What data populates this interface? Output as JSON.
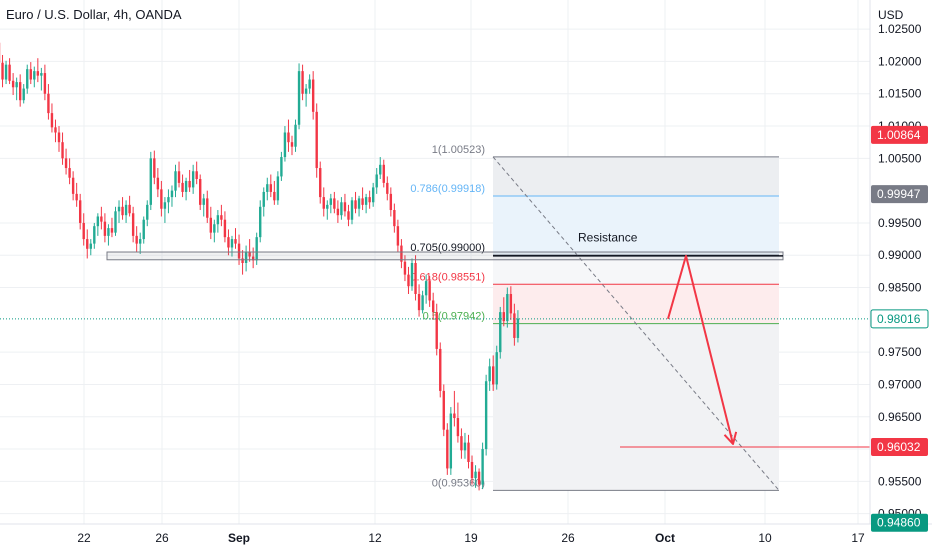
{
  "header": {
    "title": "Euro / U.S. Dollar, 4h, OANDA"
  },
  "colors": {
    "up": "#22ab94",
    "down": "#f23645",
    "grid": "#eef0f3",
    "axis_text": "#131722",
    "fib_1": "#787b86",
    "fib_786": "#64b5f6",
    "fib_705": "#131722",
    "fib_618": "#f23645",
    "fib_05": "#4caf50",
    "fib_0": "#787b86",
    "current_price": "#089981",
    "label_red": "#f23645",
    "label_gray": "#787b86",
    "label_teal": "#089981",
    "projection": "#f23645"
  },
  "chart_data": {
    "type": "candlestick",
    "instrument": "Euro / U.S. Dollar",
    "timeframe": "4h",
    "source": "OANDA",
    "y_axis": {
      "label": "USD",
      "ylim": [
        0.9484,
        1.0292
      ],
      "ticks": [
        "1.02500",
        "1.02000",
        "1.01500",
        "1.01000",
        "1.00500",
        "0.99500",
        "0.99000",
        "0.98500",
        "0.97500",
        "0.97000",
        "0.96500",
        "0.96000",
        "0.95500",
        "0.95000"
      ]
    },
    "x_axis": {
      "ticks": [
        "22",
        "26",
        "Sep",
        "12",
        "19",
        "26",
        "Oct",
        "10",
        "17"
      ]
    },
    "grid": true,
    "price_labels": [
      {
        "text": "1.00864",
        "value": 1.00864,
        "style": "red"
      },
      {
        "text": "0.99947",
        "value": 0.99947,
        "style": "gray"
      },
      {
        "text": "0.98016",
        "value": 0.98016,
        "style": "teal-outline"
      },
      {
        "text": "0.96032",
        "value": 0.96032,
        "style": "red"
      },
      {
        "text": "0.94860",
        "value": 0.9486,
        "style": "teal"
      }
    ],
    "current_price": 0.98016,
    "fibonacci": [
      {
        "label": "1(1.00523)",
        "value": 1.00523
      },
      {
        "label": "0.786(0.99918)",
        "value": 0.99918
      },
      {
        "label": "0.705(0.99000)",
        "value": 0.99
      },
      {
        "label": "0.618(0.98551)",
        "value": 0.98551
      },
      {
        "label": "0.5(0.97942)",
        "value": 0.97942
      },
      {
        "label": "0(0.95360)",
        "value": 0.9536
      }
    ],
    "resistance": {
      "label": "Resistance",
      "low": 0.9895,
      "high": 0.9908
    },
    "support_zone": {
      "low": 0.9893,
      "high": 0.9905
    },
    "target_level": 0.96032,
    "projection_path": [
      0.98016,
      0.9899,
      0.96032
    ],
    "candles": [
      [
        1.0229,
        1.0239,
        1.0185,
        1.0198
      ],
      [
        1.0198,
        1.021,
        1.016,
        1.0172
      ],
      [
        1.0172,
        1.0201,
        1.0165,
        1.0195
      ],
      [
        1.0195,
        1.0205,
        1.0165,
        1.017
      ],
      [
        1.017,
        1.0182,
        1.0148,
        1.016
      ],
      [
        1.016,
        1.0175,
        1.014,
        1.0168
      ],
      [
        1.0168,
        1.018,
        1.013,
        1.014
      ],
      [
        1.014,
        1.0165,
        1.0135,
        1.0158
      ],
      [
        1.0158,
        1.0195,
        1.015,
        1.0188
      ],
      [
        1.0188,
        1.0199,
        1.0165,
        1.0172
      ],
      [
        1.0172,
        1.0192,
        1.016,
        1.0185
      ],
      [
        1.0185,
        1.0205,
        1.0168,
        1.0178
      ],
      [
        1.0178,
        1.019,
        1.0155,
        1.0182
      ],
      [
        1.0182,
        1.0195,
        1.014,
        1.015
      ],
      [
        1.015,
        1.0165,
        1.011,
        1.012
      ],
      [
        1.012,
        1.0135,
        1.009,
        1.0098
      ],
      [
        1.0098,
        1.011,
        1.0075,
        1.009
      ],
      [
        1.009,
        1.01,
        1.006,
        1.0075
      ],
      [
        1.0075,
        1.009,
        1.004,
        1.005
      ],
      [
        1.005,
        1.0065,
        1.0025,
        1.0035
      ],
      [
        1.0035,
        1.005,
        1.001,
        1.002
      ],
      [
        1.002,
        1.003,
        0.9985,
        0.9995
      ],
      [
        0.9995,
        1.0012,
        0.9975,
        0.9985
      ],
      [
        0.9985,
        0.9995,
        0.994,
        0.995
      ],
      [
        0.995,
        0.9965,
        0.9915,
        0.9925
      ],
      [
        0.9925,
        0.994,
        0.9895,
        0.991
      ],
      [
        0.991,
        0.9925,
        0.99,
        0.9918
      ],
      [
        0.9918,
        0.995,
        0.991,
        0.9945
      ],
      [
        0.9945,
        0.9965,
        0.993,
        0.996
      ],
      [
        0.996,
        0.9975,
        0.994,
        0.9952
      ],
      [
        0.9952,
        0.9965,
        0.992,
        0.993
      ],
      [
        0.993,
        0.9948,
        0.9915,
        0.9942
      ],
      [
        0.9942,
        0.9958,
        0.9928,
        0.9935
      ],
      [
        0.9935,
        0.9975,
        0.993,
        0.9968
      ],
      [
        0.9968,
        0.9985,
        0.995,
        0.9975
      ],
      [
        0.9975,
        0.999,
        0.9955,
        0.9962
      ],
      [
        0.9962,
        0.9985,
        0.995,
        0.9978
      ],
      [
        0.9978,
        0.9992,
        0.996,
        0.9965
      ],
      [
        0.9965,
        0.9975,
        0.992,
        0.993
      ],
      [
        0.993,
        0.9945,
        0.9905,
        0.9918
      ],
      [
        0.9918,
        0.9935,
        0.9902,
        0.9925
      ],
      [
        0.9925,
        0.996,
        0.9918,
        0.9955
      ],
      [
        0.9955,
        0.9985,
        0.9945,
        0.9978
      ],
      [
        0.9978,
        1.006,
        0.997,
        1.005
      ],
      [
        1.005,
        1.0062,
        1.001,
        1.002
      ],
      [
        1.002,
        1.0035,
        0.999,
        1.0002
      ],
      [
        1.0002,
        1.0015,
        0.996,
        0.9972
      ],
      [
        0.9972,
        0.999,
        0.995,
        0.9982
      ],
      [
        0.9982,
        1.0002,
        0.9965,
        0.999
      ],
      [
        0.999,
        1.0008,
        0.9975,
        1.0
      ],
      [
        1.0,
        1.004,
        0.999,
        1.003
      ],
      [
        1.003,
        1.0045,
        1.0005,
        1.0012
      ],
      [
        1.0012,
        1.0025,
        0.999,
        0.9998
      ],
      [
        0.9998,
        1.002,
        0.9985,
        1.0015
      ],
      [
        1.0015,
        1.0032,
        0.9998,
        1.0005
      ],
      [
        1.0005,
        1.004,
        0.9995,
        1.003
      ],
      [
        1.003,
        1.0045,
        1.001,
        1.0018
      ],
      [
        1.0018,
        1.0025,
        0.997,
        0.9978
      ],
      [
        0.9978,
        0.9995,
        0.996,
        0.9988
      ],
      [
        0.9988,
        1.0,
        0.995,
        0.9958
      ],
      [
        0.9958,
        0.9975,
        0.9925,
        0.9935
      ],
      [
        0.9935,
        0.9955,
        0.992,
        0.9948
      ],
      [
        0.9948,
        0.997,
        0.9935,
        0.9962
      ],
      [
        0.9962,
        0.9978,
        0.9945,
        0.9955
      ],
      [
        0.9955,
        0.9968,
        0.992,
        0.9928
      ],
      [
        0.9928,
        0.994,
        0.99,
        0.9912
      ],
      [
        0.9912,
        0.993,
        0.9898,
        0.9925
      ],
      [
        0.9925,
        0.9942,
        0.991,
        0.9918
      ],
      [
        0.9918,
        0.9932,
        0.9885,
        0.9895
      ],
      [
        0.9895,
        0.9908,
        0.987,
        0.9888
      ],
      [
        0.9888,
        0.9915,
        0.9875,
        0.9905
      ],
      [
        0.9905,
        0.9925,
        0.989,
        0.9898
      ],
      [
        0.9898,
        0.9912,
        0.988,
        0.9892
      ],
      [
        0.9892,
        0.9935,
        0.9885,
        0.9928
      ],
      [
        0.9928,
        0.9985,
        0.992,
        0.9975
      ],
      [
        0.9975,
        1.0005,
        0.996,
        0.9998
      ],
      [
        0.9998,
        1.002,
        0.9985,
        1.001
      ],
      [
        1.001,
        1.0025,
        0.999,
        0.9998
      ],
      [
        0.9998,
        1.0015,
        0.9978,
        0.9985
      ],
      [
        0.9985,
        1.003,
        0.9978,
        1.0022
      ],
      [
        1.0022,
        1.006,
        1.0015,
        1.0052
      ],
      [
        1.0052,
        1.01,
        1.0045,
        1.009
      ],
      [
        1.009,
        1.011,
        1.006,
        1.0075
      ],
      [
        1.0075,
        1.0085,
        1.0055,
        1.0068
      ],
      [
        1.0068,
        1.011,
        1.006,
        1.0102
      ],
      [
        1.0102,
        1.0197,
        1.0095,
        1.0185
      ],
      [
        1.0185,
        1.0195,
        1.014,
        1.015
      ],
      [
        1.015,
        1.0165,
        1.013,
        1.0158
      ],
      [
        1.0158,
        1.018,
        1.015,
        1.0172
      ],
      [
        1.0172,
        1.0185,
        1.011,
        1.0122
      ],
      [
        1.0122,
        1.0135,
        1.002,
        1.0035
      ],
      [
        1.0035,
        1.0045,
        0.998,
        0.999
      ],
      [
        0.999,
        1.0005,
        0.996,
        0.9972
      ],
      [
        0.9972,
        0.9985,
        0.9955,
        0.9978
      ],
      [
        0.9978,
        0.9995,
        0.9965,
        0.9988
      ],
      [
        0.9988,
        0.9998,
        0.9965,
        0.9972
      ],
      [
        0.9972,
        0.9985,
        0.995,
        0.9962
      ],
      [
        0.9962,
        0.999,
        0.9955,
        0.9982
      ],
      [
        0.9982,
        0.9995,
        0.996,
        0.9968
      ],
      [
        0.9968,
        0.9978,
        0.9945,
        0.9955
      ],
      [
        0.9955,
        0.999,
        0.9948,
        0.9985
      ],
      [
        0.9985,
        0.9998,
        0.9965,
        0.9972
      ],
      [
        0.9972,
        0.9992,
        0.996,
        0.9988
      ],
      [
        0.9988,
        1.0005,
        0.997,
        0.9978
      ],
      [
        0.9978,
        0.9995,
        0.9965,
        0.999
      ],
      [
        0.999,
        1.0,
        0.9972,
        0.9982
      ],
      [
        0.9982,
        1.0012,
        0.9975,
        1.0005
      ],
      [
        1.0005,
        1.0035,
        0.9995,
        1.0025
      ],
      [
        1.0025,
        1.0052,
        1.0018,
        1.004
      ],
      [
        1.004,
        1.0048,
        1.0005,
        1.0012
      ],
      [
        1.0012,
        1.0022,
        0.9985,
        0.9995
      ],
      [
        0.9995,
        1.0005,
        0.996,
        0.997
      ],
      [
        0.997,
        0.998,
        0.9935,
        0.9945
      ],
      [
        0.9945,
        0.9955,
        0.9905,
        0.9915
      ],
      [
        0.9915,
        0.9925,
        0.988,
        0.989
      ],
      [
        0.989,
        0.99,
        0.986,
        0.987
      ],
      [
        0.987,
        0.9882,
        0.984,
        0.9852
      ],
      [
        0.9852,
        0.9895,
        0.9845,
        0.9888
      ],
      [
        0.9888,
        0.99,
        0.983,
        0.984
      ],
      [
        0.984,
        0.9855,
        0.9805,
        0.9815
      ],
      [
        0.9815,
        0.9845,
        0.981,
        0.9838
      ],
      [
        0.9838,
        0.987,
        0.9825,
        0.986
      ],
      [
        0.986,
        0.9868,
        0.982,
        0.983
      ],
      [
        0.983,
        0.9842,
        0.98,
        0.9812
      ],
      [
        0.9812,
        0.9825,
        0.9745,
        0.9755
      ],
      [
        0.9755,
        0.9765,
        0.968,
        0.969
      ],
      [
        0.969,
        0.97,
        0.962,
        0.963
      ],
      [
        0.963,
        0.964,
        0.956,
        0.957
      ],
      [
        0.957,
        0.9665,
        0.956,
        0.9655
      ],
      [
        0.9655,
        0.969,
        0.9635,
        0.9648
      ],
      [
        0.9648,
        0.9672,
        0.961,
        0.962
      ],
      [
        0.962,
        0.9632,
        0.9585,
        0.9598
      ],
      [
        0.9598,
        0.9625,
        0.9585,
        0.961
      ],
      [
        0.961,
        0.9622,
        0.957,
        0.958
      ],
      [
        0.958,
        0.959,
        0.9545,
        0.9555
      ],
      [
        0.9555,
        0.9575,
        0.954,
        0.9565
      ],
      [
        0.9565,
        0.957,
        0.9536,
        0.9545
      ],
      [
        0.9545,
        0.961,
        0.9538,
        0.96
      ],
      [
        0.96,
        0.9715,
        0.959,
        0.9705
      ],
      [
        0.9705,
        0.974,
        0.969,
        0.9728
      ],
      [
        0.9728,
        0.9745,
        0.969,
        0.97
      ],
      [
        0.97,
        0.976,
        0.9692,
        0.975
      ],
      [
        0.975,
        0.982,
        0.974,
        0.9812
      ],
      [
        0.9812,
        0.9835,
        0.979,
        0.9798
      ],
      [
        0.9798,
        0.985,
        0.9788,
        0.984
      ],
      [
        0.984,
        0.9852,
        0.98,
        0.981
      ],
      [
        0.981,
        0.9825,
        0.976,
        0.9772
      ],
      [
        0.9772,
        0.9815,
        0.9765,
        0.9802
      ]
    ]
  }
}
